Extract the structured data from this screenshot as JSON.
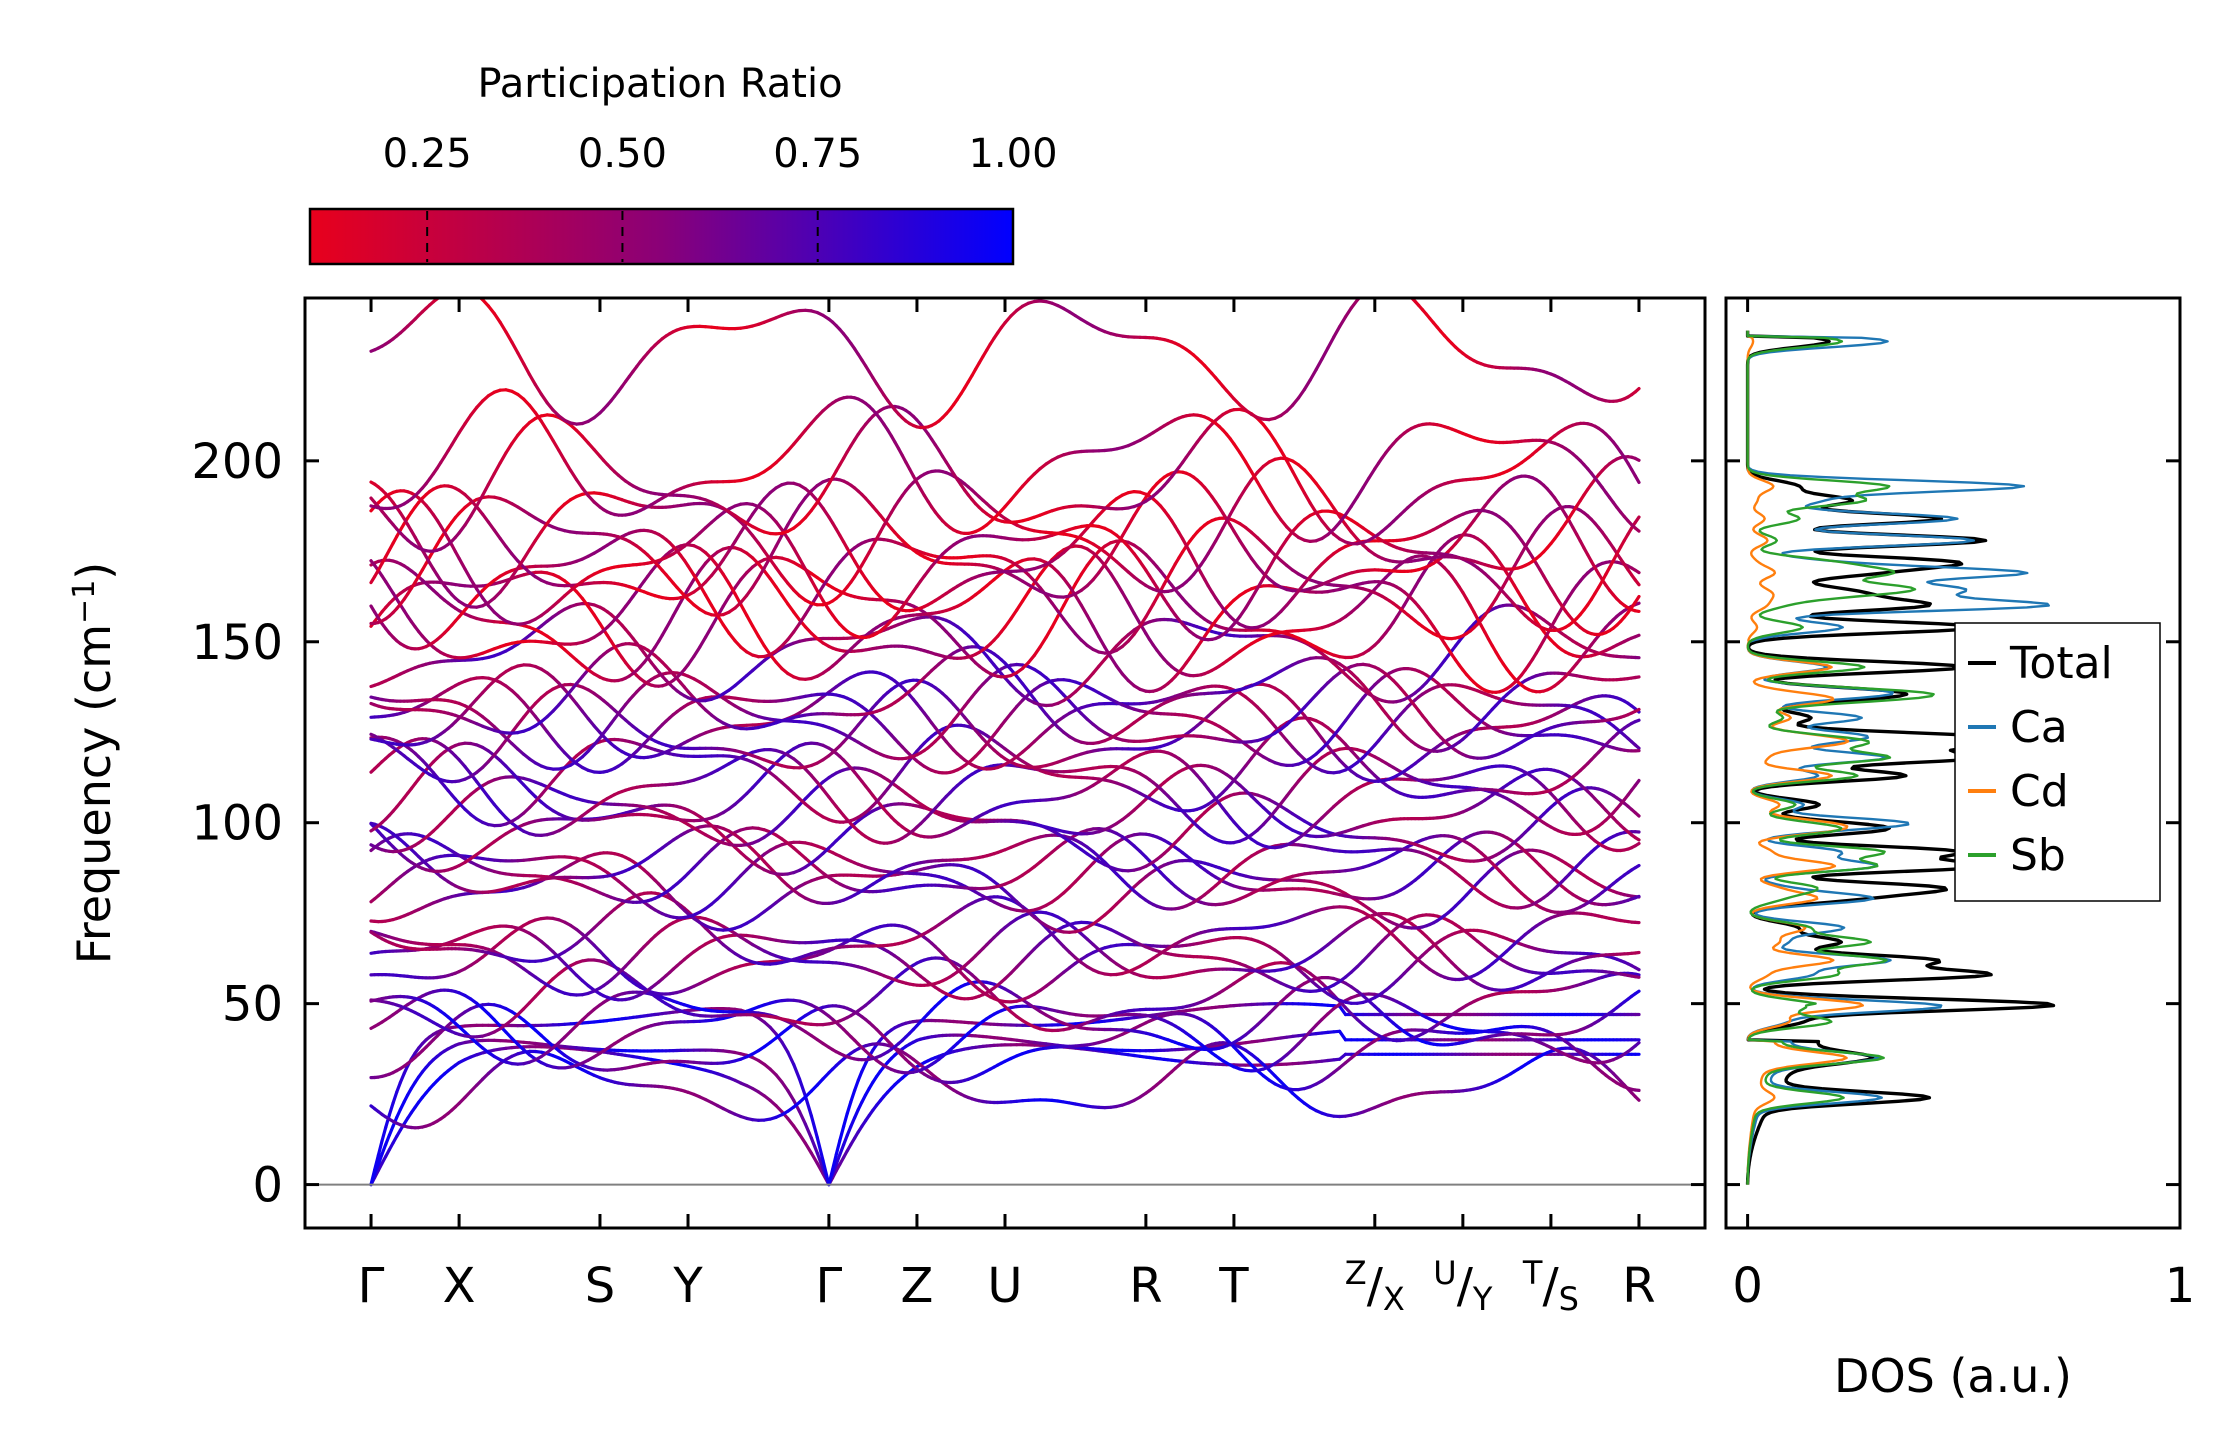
{
  "chart_data": [
    {
      "type": "line",
      "name": "phonon-band-structure",
      "ylabel": "Frequency (cm",
      "ylabel_sup": "−1",
      "ylabel_close": ")",
      "ylim": [
        -12,
        245
      ],
      "yticks": [
        "0",
        "50",
        "100",
        "150",
        "200"
      ],
      "xticks": [
        {
          "label": "Γ",
          "x": 0
        },
        {
          "label": "X",
          "x": 1
        },
        {
          "label": "S",
          "x": 2.6
        },
        {
          "label": "Y",
          "x": 3.6
        },
        {
          "label": "Γ",
          "x": 5.2
        },
        {
          "label": "Z",
          "x": 6.2
        },
        {
          "label": "U",
          "x": 7.2
        },
        {
          "label": "R",
          "x": 8.8
        },
        {
          "label": "T",
          "x": 9.8
        },
        {
          "label": "Z",
          "sub": "X",
          "x": 11.4
        },
        {
          "label": "U",
          "sub": "Y",
          "x": 12.4
        },
        {
          "label": "T",
          "sub": "S",
          "x": 13.4
        },
        {
          "label": "R",
          "x": 14.4
        }
      ],
      "xlim": [
        -0.75,
        15.15
      ],
      "segment_breaks": [
        5.2,
        6.2,
        9.8,
        11.4,
        12.4,
        13.4
      ],
      "colorbar": {
        "title": "Participation Ratio",
        "ticks": [
          "0.25",
          "0.50",
          "0.75",
          "1.00"
        ],
        "tick_values": [
          0.25,
          0.5,
          0.75,
          1.0
        ],
        "range": [
          0.1,
          1.0
        ],
        "color_low": "#e8001c",
        "color_mid": "#8a0078",
        "color_high": "#0000ff"
      },
      "gamma_frequencies": [
        0,
        0,
        0,
        24,
        35,
        45,
        49,
        50,
        58,
        62,
        67,
        71,
        79,
        82,
        88,
        92,
        98,
        100,
        105,
        113,
        118,
        122,
        124,
        129,
        134,
        136,
        143,
        154,
        160,
        163,
        165,
        169,
        172,
        178,
        184,
        189,
        193,
        233
      ],
      "zero_line_color": "#808080"
    },
    {
      "type": "line",
      "name": "density-of-states",
      "xlabel": "DOS (a.u.)",
      "xticks": [
        "0",
        "1"
      ],
      "xlim": [
        -0.05,
        1.0
      ],
      "series": [
        {
          "name": "Total",
          "color": "#000000"
        },
        {
          "name": "Ca",
          "color": "#1f77b4"
        },
        {
          "name": "Cd",
          "color": "#ff7f0e"
        },
        {
          "name": "Sb",
          "color": "#2ca02c"
        }
      ]
    }
  ]
}
